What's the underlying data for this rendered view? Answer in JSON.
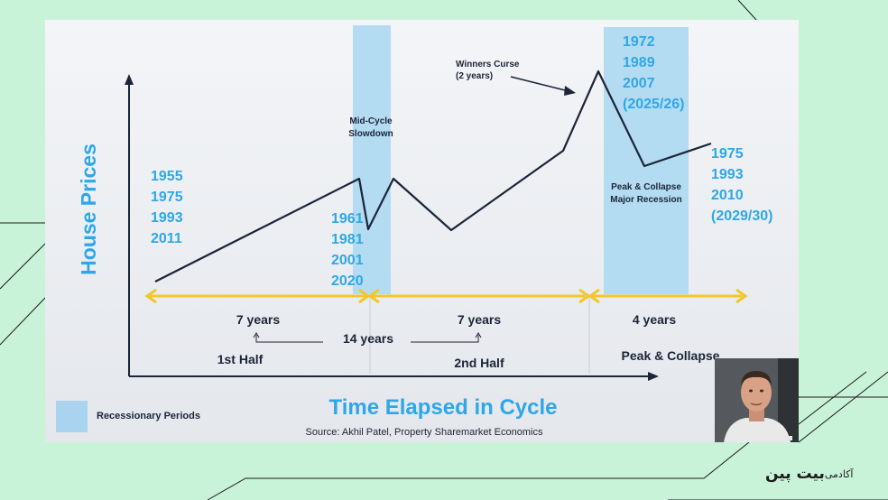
{
  "diagram": {
    "y_axis_label": "House Prices",
    "x_axis_label": "Time Elapsed in Cycle",
    "year_groups": {
      "start": [
        "1955",
        "1975",
        "1993",
        "2011"
      ],
      "mid_cycle": [
        "1961",
        "1981",
        "2001",
        "2020"
      ],
      "peak": [
        "1972",
        "1989",
        "2007",
        "(2025/26)"
      ],
      "end": [
        "1975",
        "1993",
        "2010",
        "(2029/30)"
      ]
    },
    "annotations": {
      "mid_cycle_line1": "Mid-Cycle",
      "mid_cycle_line2": "Slowdown",
      "winners_curse_line1": "Winners Curse",
      "winners_curse_line2": "(2 years)",
      "peak_collapse_line1": "Peak & Collapse",
      "peak_collapse_line2": "Major Recession"
    },
    "periods": {
      "first_half_years": "7 years",
      "total_years": "14 years",
      "second_half_years": "7 years",
      "peak_years": "4 years",
      "first_half": "1st Half",
      "second_half": "2nd Half",
      "peak_collapse": "Peak & Collapse"
    },
    "legend": {
      "recessionary": "Recessionary Periods"
    },
    "source": "Source: Akhil Patel, Property Sharemarket Economics",
    "colors": {
      "accent_blue": "#2ea7e8",
      "recession_band": "#b3dcf3",
      "arrow_yellow": "#f2c72b",
      "line_dark": "#1c2438"
    }
  },
  "branding": {
    "logo_main": "بیت پین",
    "logo_sub": "آکادمی"
  },
  "presenter": {
    "icon": "presenter-video-icon"
  }
}
